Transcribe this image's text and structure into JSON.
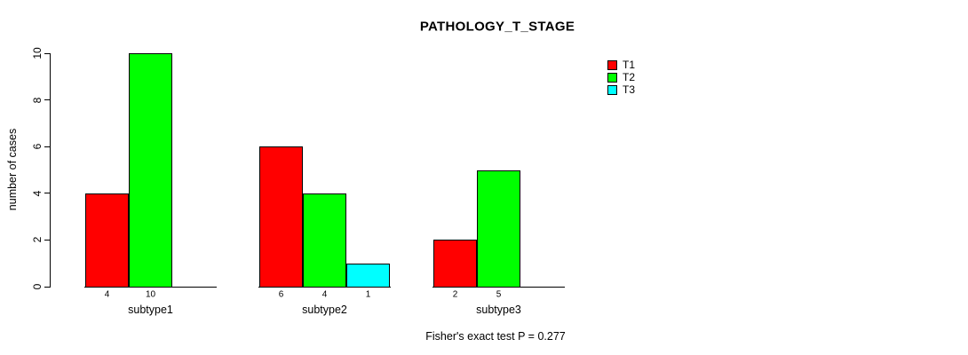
{
  "title": "PATHOLOGY_T_STAGE",
  "y_axis": {
    "label": "number of cases",
    "ticks": [
      0,
      2,
      4,
      6,
      8,
      10
    ],
    "range": [
      0,
      10
    ]
  },
  "legend": {
    "position": "top-right",
    "items": [
      {
        "label": "T1",
        "color": "#ff0000"
      },
      {
        "label": "T2",
        "color": "#00ff00"
      },
      {
        "label": "T3",
        "color": "#00ffff"
      }
    ]
  },
  "footer": "Fisher's exact test P = 0.277",
  "chart_data": {
    "type": "bar",
    "title": "PATHOLOGY_T_STAGE",
    "xlabel": "",
    "ylabel": "number of cases",
    "ylim": [
      0,
      10
    ],
    "yticks": [
      0,
      2,
      4,
      6,
      8,
      10
    ],
    "grid": false,
    "legend_position": "top-right",
    "categories": [
      "subtype1",
      "subtype2",
      "subtype3"
    ],
    "series": [
      {
        "name": "T1",
        "color": "#ff0000",
        "values": [
          4,
          6,
          2
        ]
      },
      {
        "name": "T2",
        "color": "#00ff00",
        "values": [
          10,
          4,
          5
        ]
      },
      {
        "name": "T3",
        "color": "#00ffff",
        "values": [
          0,
          1,
          0
        ]
      }
    ],
    "bar_value_labels_shown_for_nonzero": true,
    "annotation": "Fisher's exact test P = 0.277"
  }
}
